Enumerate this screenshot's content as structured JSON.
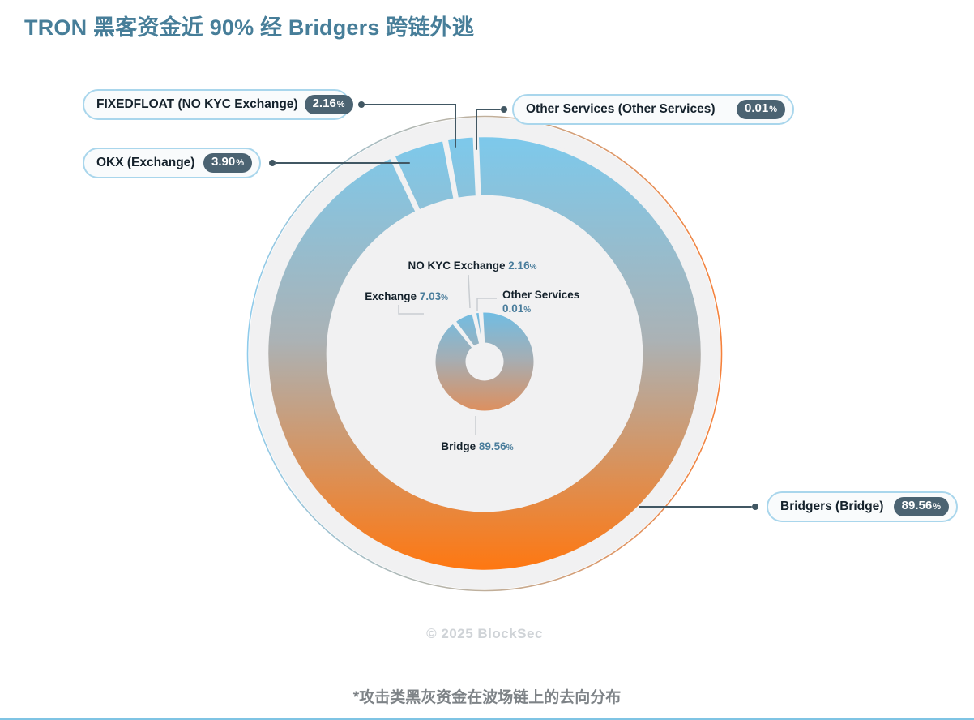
{
  "title": "TRON 黑客资金近 90% 经 Bridgers 跨链外逃",
  "annotations": {
    "copyright": "© 2025 BlockSec",
    "footnote": "*攻击类黑灰资金在波场链上的去向分布"
  },
  "callouts": [
    {
      "id": "fixedfloat",
      "label": "FIXEDFLOAT (NO KYC Exchange)",
      "value": "2.16",
      "unit": "%"
    },
    {
      "id": "okx",
      "label": "OKX (Exchange)",
      "value": "3.90",
      "unit": "%"
    },
    {
      "id": "other",
      "label": "Other Services (Other Services)",
      "value": "0.01",
      "unit": "%"
    },
    {
      "id": "bridgers",
      "label": "Bridgers (Bridge)",
      "value": "89.56",
      "unit": "%"
    }
  ],
  "inner_labels": [
    {
      "id": "nokyc",
      "label": "NO KYC Exchange",
      "value": "2.16",
      "unit": "%"
    },
    {
      "id": "exchange",
      "label": "Exchange",
      "value": "7.03",
      "unit": "%"
    },
    {
      "id": "other",
      "label": "Other Services",
      "value": "0.01",
      "unit": "%"
    },
    {
      "id": "bridge",
      "label": "Bridge",
      "value": "89.56",
      "unit": "%"
    }
  ],
  "chart_data": {
    "type": "pie",
    "variant": "two-ring sunburst donut",
    "title": "TRON 黑客资金近 90% 经 Bridgers 跨链外逃",
    "unit": "%",
    "outer_ring": {
      "categories": [
        "Bridgers (Bridge)",
        "OKX (Exchange)",
        "FIXEDFLOAT (NO KYC Exchange)",
        "Other Services (Other Services)"
      ],
      "values": [
        89.56,
        3.9,
        2.16,
        0.01
      ]
    },
    "inner_ring": {
      "categories": [
        "Bridge",
        "Exchange",
        "NO KYC Exchange",
        "Other Services"
      ],
      "values": [
        89.56,
        7.03,
        2.16,
        0.01
      ]
    },
    "legend_position": "callout labels around chart",
    "grid": false,
    "gradient_top": "#7CC9EC",
    "gradient_middle": "#ABB2B5",
    "gradient_bottom": "#FF7710"
  },
  "colors": {
    "title": "#477E99",
    "badge_bg": "#4B6372",
    "callout_border": "#A9D6EC",
    "callout_bg": "#F9FBFC",
    "disc_bg": "#F1F1F2",
    "value_text": "#4A7D9C",
    "leader_dark": "#415763",
    "leader_light": "#C9CDD1",
    "blue_top": "#7CC9EC",
    "orange_bottom": "#FF7710",
    "copyright_gray": "#CFD3D7",
    "footnote_gray": "#7E8387"
  }
}
